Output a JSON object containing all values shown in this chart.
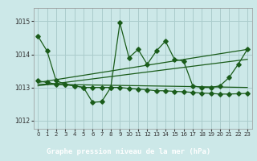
{
  "bg_color": "#cce8e8",
  "plot_bg": "#cce8e8",
  "footer_bg": "#2d6b2d",
  "grid_color": "#aacccc",
  "line_color": "#1a5c1a",
  "title": "Graphe pression niveau de la mer (hPa)",
  "title_color": "#ffffff",
  "ylim": [
    1011.75,
    1015.4
  ],
  "yticks": [
    1012,
    1013,
    1014,
    1015
  ],
  "xlim": [
    -0.5,
    23.5
  ],
  "xticks": [
    0,
    1,
    2,
    3,
    4,
    5,
    6,
    7,
    8,
    9,
    10,
    11,
    12,
    13,
    14,
    15,
    16,
    17,
    18,
    19,
    20,
    21,
    22,
    23
  ],
  "series1_x": [
    0,
    1,
    2,
    3,
    4,
    5,
    6,
    7,
    8,
    9,
    10,
    11,
    12,
    13,
    14,
    15,
    16,
    17,
    18,
    19,
    20,
    21,
    22,
    23
  ],
  "series1_y": [
    1014.55,
    1014.1,
    1013.2,
    1013.1,
    1013.05,
    1013.0,
    1012.55,
    1012.57,
    1013.0,
    1014.95,
    1013.9,
    1014.15,
    1013.7,
    1014.1,
    1014.4,
    1013.85,
    1013.8,
    1013.05,
    1013.0,
    1013.0,
    1013.05,
    1013.3,
    1013.7,
    1014.15
  ],
  "series2_x": [
    0,
    1,
    2,
    3,
    4,
    5,
    6,
    7,
    8,
    9,
    10,
    11,
    12,
    13,
    14,
    15,
    16,
    17,
    18,
    19,
    20,
    21,
    22,
    23
  ],
  "series2_y": [
    1013.2,
    1013.15,
    1013.1,
    1013.08,
    1013.05,
    1013.0,
    1013.0,
    1013.0,
    1013.0,
    1013.0,
    1012.97,
    1012.95,
    1012.93,
    1012.9,
    1012.9,
    1012.88,
    1012.87,
    1012.85,
    1012.83,
    1012.82,
    1012.8,
    1012.8,
    1012.81,
    1012.82
  ],
  "trend1_x": [
    0,
    23
  ],
  "trend1_y": [
    1013.05,
    1013.85
  ],
  "trend2_x": [
    0,
    23
  ],
  "trend2_y": [
    1013.1,
    1013.0
  ],
  "trend3_x": [
    0,
    23
  ],
  "trend3_y": [
    1013.15,
    1014.15
  ],
  "markersize": 2.8
}
